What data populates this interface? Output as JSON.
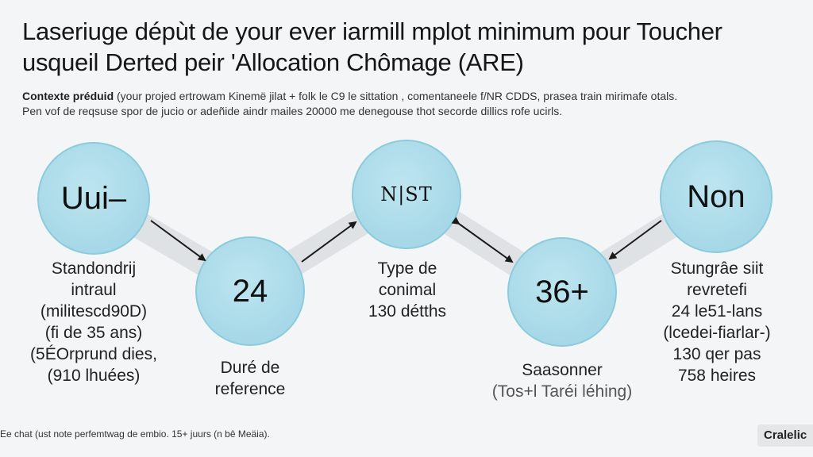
{
  "title": {
    "line1": "Laseriuge dépùt de your ever iarmill mplot minimum pour Toucher",
    "line2": "usqueil Derted peir 'Allocation Chômage (ARE)"
  },
  "context": {
    "label": "Contexte préduid",
    "line1_rest": " (your projed ertrowam Kinemë jilat + folk le C9 le sittation , comentaneele f/NR CDDS, prasea train mirimafe otals.",
    "line2": "Pen vof de reqsuse spor de jucio or adeñide aindr mailes 20000 me denegouse thot secorde dillics rofe ucirls."
  },
  "nodes": {
    "n1": {
      "label": "Uui–"
    },
    "n2": {
      "label": "24"
    },
    "n3": {
      "label": "N|ST"
    },
    "n4": {
      "label": "36+"
    },
    "n5": {
      "label": "Non"
    }
  },
  "captions": {
    "c1": [
      "Standondrij",
      "intraul",
      "(militescd90D)",
      "(fi de 35 ans)",
      "(5ÉOrprund dies,",
      "(910 lhuées)"
    ],
    "c2": [
      "Duré de",
      "reference"
    ],
    "c3": [
      "Type de",
      "conimal",
      "130 détths"
    ],
    "c4": [
      "Saasonner",
      "(Tos+l Taréi léhing)"
    ],
    "c5": [
      "Stungrâe siit",
      "revretefi",
      "24 le51-lans",
      "(lcedei-fiarlar-)",
      "130 qer pas",
      "758 heires"
    ]
  },
  "footnote": "Ee chat (ust note perfemtwag de embio. 15+ juurs (n bê Meäia).",
  "badge": "Cralelic",
  "colors": {
    "node_fill": "#a9dbe9",
    "node_stroke": "#8ccbdc",
    "connector": "#dfe2e5",
    "arrow": "#1a1a1a"
  }
}
